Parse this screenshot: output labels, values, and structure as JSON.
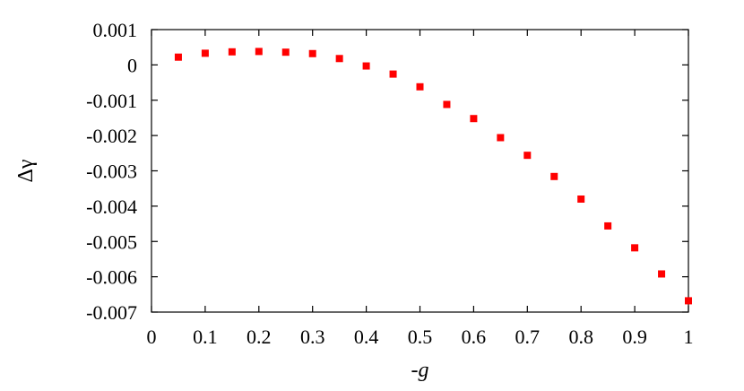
{
  "chart_data": {
    "type": "scatter",
    "title": "",
    "xlabel": "-g",
    "ylabel": "Δγ",
    "xlim": [
      0,
      1
    ],
    "ylim": [
      -0.007,
      0.001
    ],
    "grid": false,
    "marker_color": "#ff0000",
    "marker_shape": "square",
    "xticks": [
      0,
      0.1,
      0.2,
      0.3,
      0.4,
      0.5,
      0.6,
      0.7,
      0.8,
      0.9,
      1
    ],
    "xtick_labels": [
      "0",
      "0.1",
      "0.2",
      "0.3",
      "0.4",
      "0.5",
      "0.6",
      "0.7",
      "0.8",
      "0.9",
      "1"
    ],
    "yticks": [
      0.001,
      0,
      -0.001,
      -0.002,
      -0.003,
      -0.004,
      -0.005,
      -0.006,
      -0.007
    ],
    "ytick_labels": [
      "0.001",
      "0",
      "-0.001",
      "-0.002",
      "-0.003",
      "-0.004",
      "-0.005",
      "-0.006",
      "-0.007"
    ],
    "series": [
      {
        "x": [
          0.05,
          0.1,
          0.15,
          0.2,
          0.25,
          0.3,
          0.35,
          0.4,
          0.45,
          0.5,
          0.55,
          0.6,
          0.65,
          0.7,
          0.75,
          0.8,
          0.85,
          0.9,
          0.95,
          1.0
        ],
        "y": [
          0.00022,
          0.00033,
          0.00037,
          0.00038,
          0.00036,
          0.00032,
          0.00018,
          -3e-05,
          -0.00026,
          -0.00062,
          -0.00112,
          -0.00152,
          -0.00206,
          -0.00256,
          -0.00316,
          -0.0038,
          -0.00456,
          -0.00518,
          -0.00592,
          -0.00668
        ]
      }
    ]
  }
}
